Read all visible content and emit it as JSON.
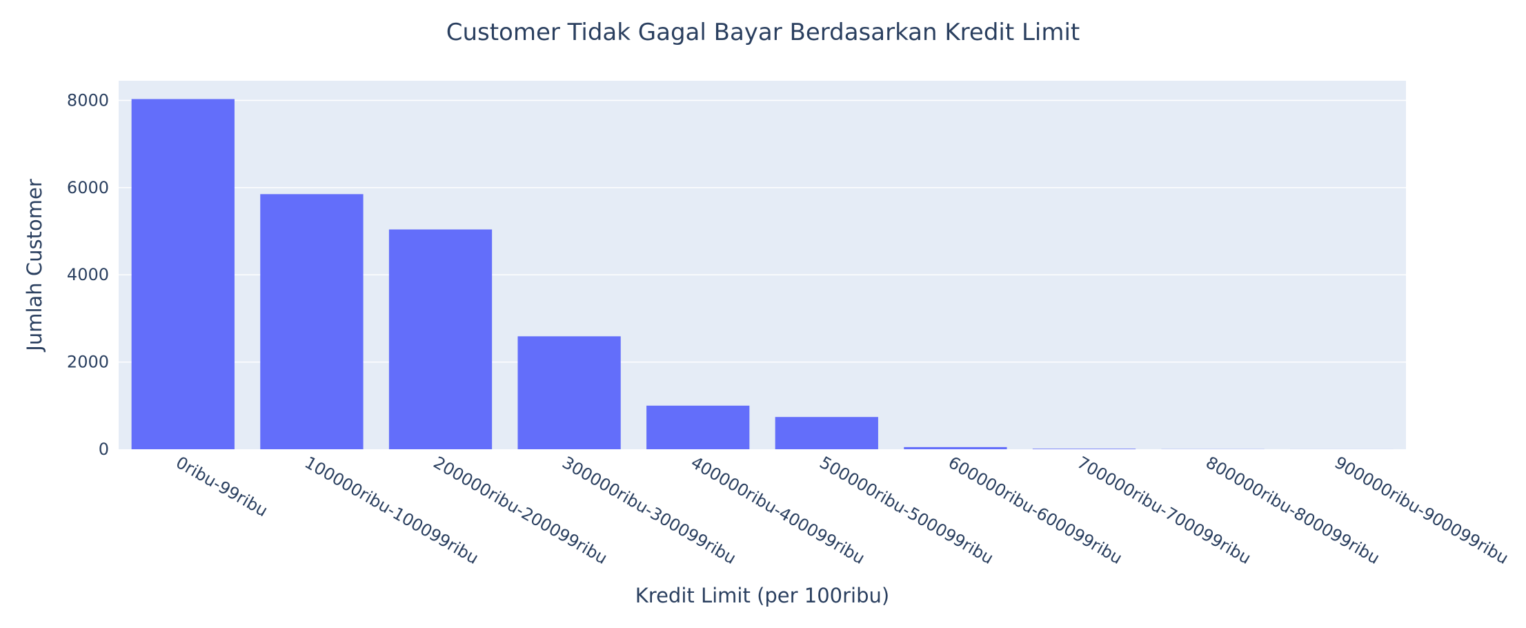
{
  "chart_data": {
    "type": "bar",
    "title": "Customer Tidak Gagal Bayar Berdasarkan Kredit Limit",
    "xlabel": "Kredit Limit (per 100ribu)",
    "ylabel": "Jumlah Customer",
    "categories": [
      "0ribu-99ribu",
      "100000ribu-100099ribu",
      "200000ribu-200099ribu",
      "300000ribu-300099ribu",
      "400000ribu-400099ribu",
      "500000ribu-500099ribu",
      "600000ribu-600099ribu",
      "700000ribu-700099ribu",
      "800000ribu-800099ribu",
      "900000ribu-900099ribu"
    ],
    "values": [
      8030,
      5850,
      5040,
      2590,
      1000,
      740,
      50,
      12,
      3,
      1
    ],
    "ylim": [
      0,
      8450
    ],
    "yticks": [
      0,
      2000,
      4000,
      6000,
      8000
    ],
    "grid": true,
    "colors": {
      "bar": "#636efa",
      "plot_bg": "#e5ecf6",
      "grid": "#ffffff",
      "text": "#2a3f5f"
    }
  }
}
